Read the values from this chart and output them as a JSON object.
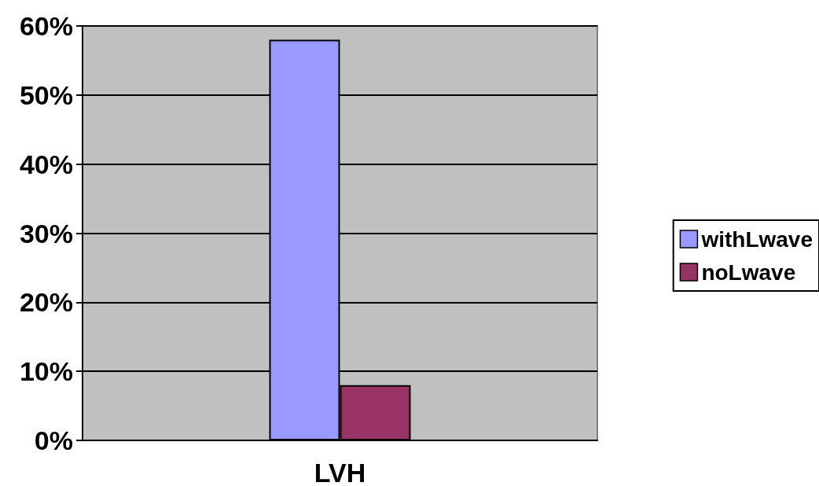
{
  "chart_data": {
    "type": "bar",
    "categories": [
      "LVH"
    ],
    "series": [
      {
        "name": "withLwave",
        "color": "#9999ff",
        "values": [
          58
        ]
      },
      {
        "name": "noLwave",
        "color": "#993366",
        "values": [
          8
        ]
      }
    ],
    "ylim": [
      0,
      60
    ],
    "yticks": [
      {
        "value": 0,
        "label": "0%"
      },
      {
        "value": 10,
        "label": "10%"
      },
      {
        "value": 20,
        "label": "20%"
      },
      {
        "value": 30,
        "label": "30%"
      },
      {
        "value": 40,
        "label": "40%"
      },
      {
        "value": 50,
        "label": "50%"
      },
      {
        "value": 60,
        "label": "60%"
      }
    ],
    "grid": "y",
    "legend": "right"
  }
}
